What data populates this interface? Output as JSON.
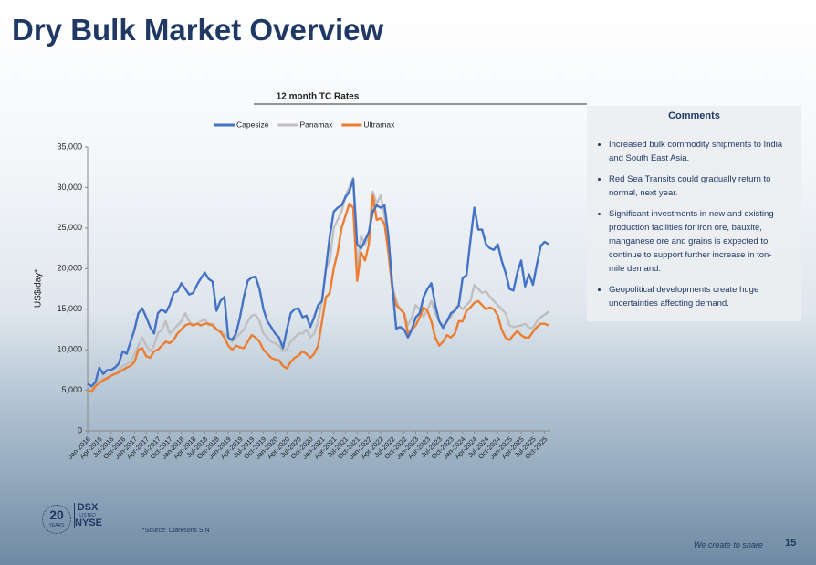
{
  "header": {
    "title": "Dry Bulk Market Overview"
  },
  "chart_data": {
    "type": "line",
    "title": "12 month TC Rates",
    "y_label": "US$/day*",
    "categories": [
      "Jan-2016",
      null,
      null,
      "Apr-2016",
      null,
      null,
      "Jul-2016",
      null,
      null,
      "Oct-2016",
      null,
      null,
      "Jan-2017",
      null,
      null,
      "Apr-2017",
      null,
      null,
      "Jul-2017",
      null,
      null,
      "Oct-2017",
      null,
      null,
      "Jan-2018",
      null,
      null,
      "Apr-2018",
      null,
      null,
      "Jul-2018",
      null,
      null,
      "Oct-2018",
      null,
      null,
      "Jan-2019",
      null,
      null,
      "Apr-2019",
      null,
      null,
      "Jul-2019",
      null,
      null,
      "Oct-2019",
      null,
      null,
      "Jan-2020",
      null,
      null,
      "Apr-2020",
      null,
      null,
      "Jul-2020",
      null,
      null,
      "Oct-2020",
      null,
      null,
      "Jan-2021",
      null,
      null,
      "Apr-2021",
      null,
      null,
      "Jul-2021",
      null,
      null,
      "Oct-2021",
      null,
      null,
      "Jan-2022",
      null,
      null,
      "Apr-2022",
      null,
      null,
      "Jul-2022",
      null,
      null,
      "Oct-2022",
      null,
      null,
      "Jan-2023",
      null,
      null,
      "Apr-2023",
      null,
      null,
      "Jul-2023",
      null,
      null,
      "Oct-2023",
      null,
      null,
      "Jan-2024",
      null,
      null,
      "Apr-2024",
      null,
      null,
      "Jul-2024",
      null,
      null,
      "Oct-2024",
      null,
      null,
      "Jan-2025",
      null,
      null,
      "Apr-2025",
      null,
      null,
      "Jul-2025",
      null,
      null,
      "Oct-2025",
      null
    ],
    "series": [
      {
        "name": "Capesize",
        "color": "#4472c4",
        "values": [
          5800,
          5500,
          6000,
          7800,
          7000,
          7500,
          7500,
          7800,
          8300,
          9800,
          9500,
          11000,
          12500,
          14500,
          15100,
          14000,
          12800,
          12000,
          14500,
          15000,
          14600,
          15500,
          17000,
          17200,
          18200,
          17500,
          16800,
          17000,
          18000,
          18800,
          19500,
          18700,
          18400,
          14800,
          16000,
          16500,
          11500,
          11200,
          12000,
          14000,
          16500,
          18500,
          18900,
          19000,
          17500,
          15000,
          13500,
          12800,
          12000,
          11500,
          10200,
          12500,
          14500,
          15000,
          15100,
          14000,
          14200,
          12800,
          14000,
          15500,
          16000,
          20000,
          24000,
          27000,
          27500,
          27800,
          28800,
          29500,
          31000,
          23000,
          22500,
          23500,
          24500,
          27000,
          27800,
          27500,
          27800,
          24000,
          18000,
          12600,
          12800,
          12500,
          11500,
          12500,
          14000,
          14500,
          16500,
          17500,
          18200,
          15500,
          13500,
          12700,
          13500,
          14500,
          14800,
          15500,
          18800,
          19200,
          23500,
          27500,
          24800,
          24800,
          23000,
          22500,
          22300,
          23000,
          21000,
          19500,
          17500,
          17300,
          19500,
          21000,
          17800,
          19300,
          18000,
          20500,
          22800,
          23300,
          23000
        ]
      },
      {
        "name": "Panamax",
        "color": "#bfbfbf",
        "values": [
          5500,
          5200,
          5800,
          6200,
          6500,
          6300,
          6800,
          7000,
          7500,
          8000,
          8200,
          8500,
          9500,
          10500,
          11500,
          10500,
          9800,
          10500,
          12000,
          12500,
          13500,
          12000,
          12500,
          13000,
          13500,
          14500,
          13500,
          13000,
          13200,
          13500,
          13800,
          13000,
          13200,
          12500,
          12300,
          12000,
          11500,
          11000,
          11500,
          12000,
          12500,
          13500,
          14200,
          14300,
          13500,
          12000,
          11500,
          11000,
          10800,
          10500,
          9800,
          10000,
          11000,
          11500,
          12000,
          12000,
          12500,
          11500,
          12000,
          13500,
          16000,
          20000,
          21000,
          25000,
          26000,
          27000,
          29000,
          30000,
          31200,
          20000,
          24000,
          23000,
          24000,
          29500,
          28000,
          29000,
          26500,
          22000,
          18000,
          16000,
          15000,
          14500,
          13000,
          14000,
          15500,
          15000,
          14000,
          15000,
          16000,
          14500,
          13500,
          13000,
          13500,
          14000,
          15000,
          15500,
          15000,
          15500,
          16000,
          18000,
          17500,
          17000,
          17200,
          16500,
          16000,
          15500,
          15000,
          14500,
          13000,
          12800,
          12900,
          13000,
          13200,
          12700,
          12700,
          13500,
          14000,
          14300,
          14700
        ]
      },
      {
        "name": "Ultramax",
        "color": "#ed7d31",
        "values": [
          5000,
          4800,
          5500,
          5900,
          6200,
          6500,
          6800,
          7000,
          7200,
          7500,
          7800,
          8000,
          8500,
          10000,
          10200,
          9200,
          9000,
          9800,
          10000,
          10500,
          11000,
          10800,
          11200,
          12000,
          12500,
          13000,
          13200,
          13000,
          13200,
          13000,
          13200,
          13200,
          13000,
          12500,
          12200,
          11500,
          10500,
          10000,
          10500,
          10300,
          10200,
          11000,
          11800,
          11500,
          11000,
          10000,
          9500,
          9000,
          8800,
          8700,
          8000,
          7700,
          8500,
          9000,
          9300,
          9800,
          9500,
          9000,
          9500,
          10500,
          13500,
          16500,
          17000,
          20000,
          22000,
          25000,
          26500,
          28000,
          27500,
          18500,
          22000,
          21000,
          23000,
          29000,
          26000,
          26200,
          25500,
          22000,
          17500,
          15500,
          15000,
          14500,
          12000,
          12500,
          13000,
          14000,
          15200,
          14800,
          13500,
          11500,
          10500,
          11000,
          11800,
          11500,
          12000,
          13500,
          13500,
          14800,
          15200,
          15800,
          16000,
          15500,
          15000,
          15200,
          15000,
          14200,
          12500,
          11500,
          11200,
          11800,
          12300,
          11800,
          11500,
          11500,
          12200,
          12800,
          13200,
          13200,
          13000
        ]
      }
    ],
    "ylim": [
      0,
      35000
    ],
    "yticks": [
      0,
      {
        "value": 5000,
        "label": "5,000"
      },
      {
        "value": 10000,
        "label": "10,000"
      },
      {
        "value": 15000,
        "label": "15,000"
      },
      {
        "value": 20000,
        "label": "20,000"
      },
      {
        "value": 25000,
        "label": "25,000"
      },
      {
        "value": 30000,
        "label": "30,000"
      },
      {
        "value": 35000,
        "label": "35,000"
      }
    ],
    "grid": false,
    "legend": "top"
  },
  "comments": {
    "title": "Comments",
    "items": [
      "Increased bulk commodity shipments to India and South East Asia.",
      "Red Sea Transits could gradually return to normal, next year.",
      "Significant investments in new and existing production facilities for iron ore, bauxite, manganese ore and grains is expected to continue to support further increase in ton-mile demand.",
      "Geopolitical developments create huge uncertainties affecting demand."
    ]
  },
  "footer": {
    "source": "*Source: Clarksons SIN",
    "tagline": "We create to share",
    "page": "15",
    "logo": {
      "years": "20",
      "years_label": "YEARS",
      "name": "DSX",
      "listed": "LISTED",
      "exchange": "NYSE"
    }
  }
}
